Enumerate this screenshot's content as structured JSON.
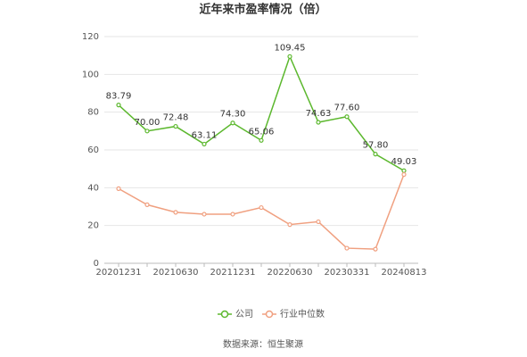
{
  "chart_data": {
    "type": "line",
    "title": "近年来市盈率情况（倍）",
    "categories": [
      "20201231",
      null,
      "20210630",
      null,
      "20211231",
      null,
      "20220630",
      null,
      "20230331",
      null,
      "20240813"
    ],
    "series": [
      {
        "name": "公司",
        "color": "#5cb82e",
        "values": [
          83.79,
          70.0,
          72.48,
          63.11,
          74.3,
          65.06,
          109.45,
          74.63,
          77.6,
          57.8,
          49.03
        ],
        "value_labels": [
          "83.79",
          "70.00",
          "72.48",
          "63.11",
          "74.30",
          "65.06",
          "109.45",
          "74.63",
          "77.60",
          "57.80",
          "49.03"
        ]
      },
      {
        "name": "行业中位数",
        "color": "#f0a080",
        "values": [
          39.5,
          31,
          27,
          26,
          26,
          29.5,
          20.5,
          22,
          8,
          7.5,
          47
        ]
      }
    ],
    "ylim": [
      0,
      120
    ],
    "yticks": [
      0,
      20,
      40,
      60,
      80,
      100,
      120
    ],
    "grid": true,
    "legend": "bottom",
    "source": "数据来源：恒生聚源"
  }
}
